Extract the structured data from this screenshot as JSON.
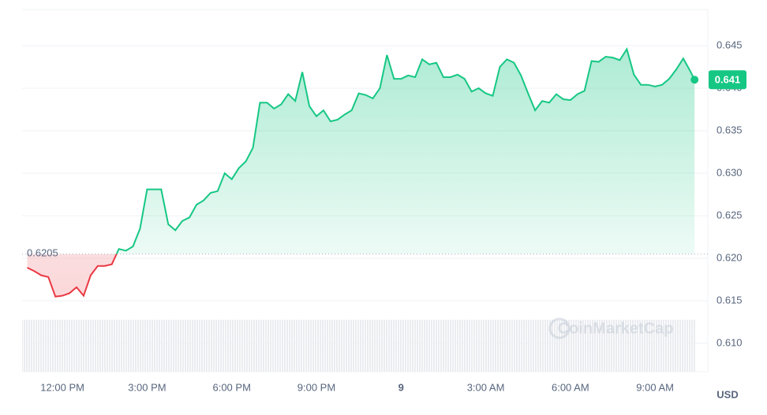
{
  "chart_data": {
    "type": "line",
    "y_axis_label": "USD",
    "watermark": "CoinMarketCap",
    "reference_line": 0.6205,
    "colors": {
      "above": "#16c784",
      "below": "#ea3943"
    },
    "grid": true,
    "xlim": [
      -1.43,
      22.87
    ],
    "ylim": [
      0.60667,
      0.64926
    ],
    "xticks": [
      {
        "value": 0,
        "label": "12:00 PM"
      },
      {
        "value": 3,
        "label": "3:00 PM"
      },
      {
        "value": 6,
        "label": "6:00 PM"
      },
      {
        "value": 9,
        "label": "9:00 PM"
      },
      {
        "value": 12,
        "label": "9"
      },
      {
        "value": 15,
        "label": "3:00 AM"
      },
      {
        "value": 18,
        "label": "6:00 AM"
      },
      {
        "value": 21,
        "label": "9:00 AM"
      }
    ],
    "yticks": [
      0.645,
      {
        "value": 0.64,
        "label": "0.640"
      },
      0.635,
      {
        "value": 0.63,
        "label": "0.630"
      },
      0.625,
      {
        "value": 0.62,
        "label": "0.620"
      },
      0.615,
      {
        "value": 0.61,
        "label": "0.610"
      }
    ],
    "x": [
      -1.25,
      -1,
      -0.75,
      -0.5,
      -0.25,
      0,
      0.25,
      0.5,
      0.75,
      1,
      1.25,
      1.5,
      1.75,
      2,
      2.25,
      2.5,
      2.75,
      3,
      3.25,
      3.5,
      3.75,
      4,
      4.25,
      4.5,
      4.75,
      5,
      5.25,
      5.5,
      5.75,
      6,
      6.25,
      6.5,
      6.75,
      7,
      7.25,
      7.5,
      7.75,
      8,
      8.25,
      8.5,
      8.75,
      9,
      9.25,
      9.5,
      9.75,
      10,
      10.25,
      10.5,
      10.75,
      11,
      11.25,
      11.5,
      11.75,
      12,
      12.25,
      12.5,
      12.75,
      13,
      13.25,
      13.5,
      13.75,
      14,
      14.25,
      14.5,
      14.75,
      15,
      15.25,
      15.5,
      15.75,
      16,
      16.25,
      16.5,
      16.75,
      17,
      17.25,
      17.5,
      17.75,
      18,
      18.25,
      18.5,
      18.75,
      19,
      19.25,
      19.5,
      19.75,
      20,
      20.25,
      20.5,
      20.75,
      21,
      21.25,
      21.5,
      21.75,
      22,
      22.25,
      22.4
    ],
    "values": [
      0.6189,
      0.6185,
      0.618,
      0.6178,
      0.6155,
      0.6156,
      0.6159,
      0.6166,
      0.6156,
      0.618,
      0.6191,
      0.6191,
      0.6193,
      0.6211,
      0.6209,
      0.6214,
      0.6235,
      0.6281,
      0.6281,
      0.6281,
      0.624,
      0.6233,
      0.6244,
      0.6248,
      0.6263,
      0.6268,
      0.6277,
      0.6279,
      0.63,
      0.6293,
      0.6306,
      0.6314,
      0.633,
      0.6383,
      0.6383,
      0.6376,
      0.6381,
      0.6393,
      0.6385,
      0.6419,
      0.6379,
      0.6367,
      0.6374,
      0.6361,
      0.6363,
      0.6369,
      0.6374,
      0.6394,
      0.6392,
      0.6388,
      0.64,
      0.6439,
      0.6411,
      0.6411,
      0.6415,
      0.6413,
      0.6434,
      0.6428,
      0.643,
      0.6413,
      0.6413,
      0.6416,
      0.6411,
      0.6396,
      0.64,
      0.6394,
      0.6391,
      0.6425,
      0.6434,
      0.643,
      0.6415,
      0.6394,
      0.6374,
      0.6385,
      0.6383,
      0.6393,
      0.6387,
      0.6386,
      0.6393,
      0.6397,
      0.6432,
      0.6431,
      0.6437,
      0.6436,
      0.6433,
      0.6446,
      0.6416,
      0.6404,
      0.6404,
      0.6402,
      0.6404,
      0.6411,
      0.6422,
      0.6435,
      0.642,
      0.641
    ]
  }
}
